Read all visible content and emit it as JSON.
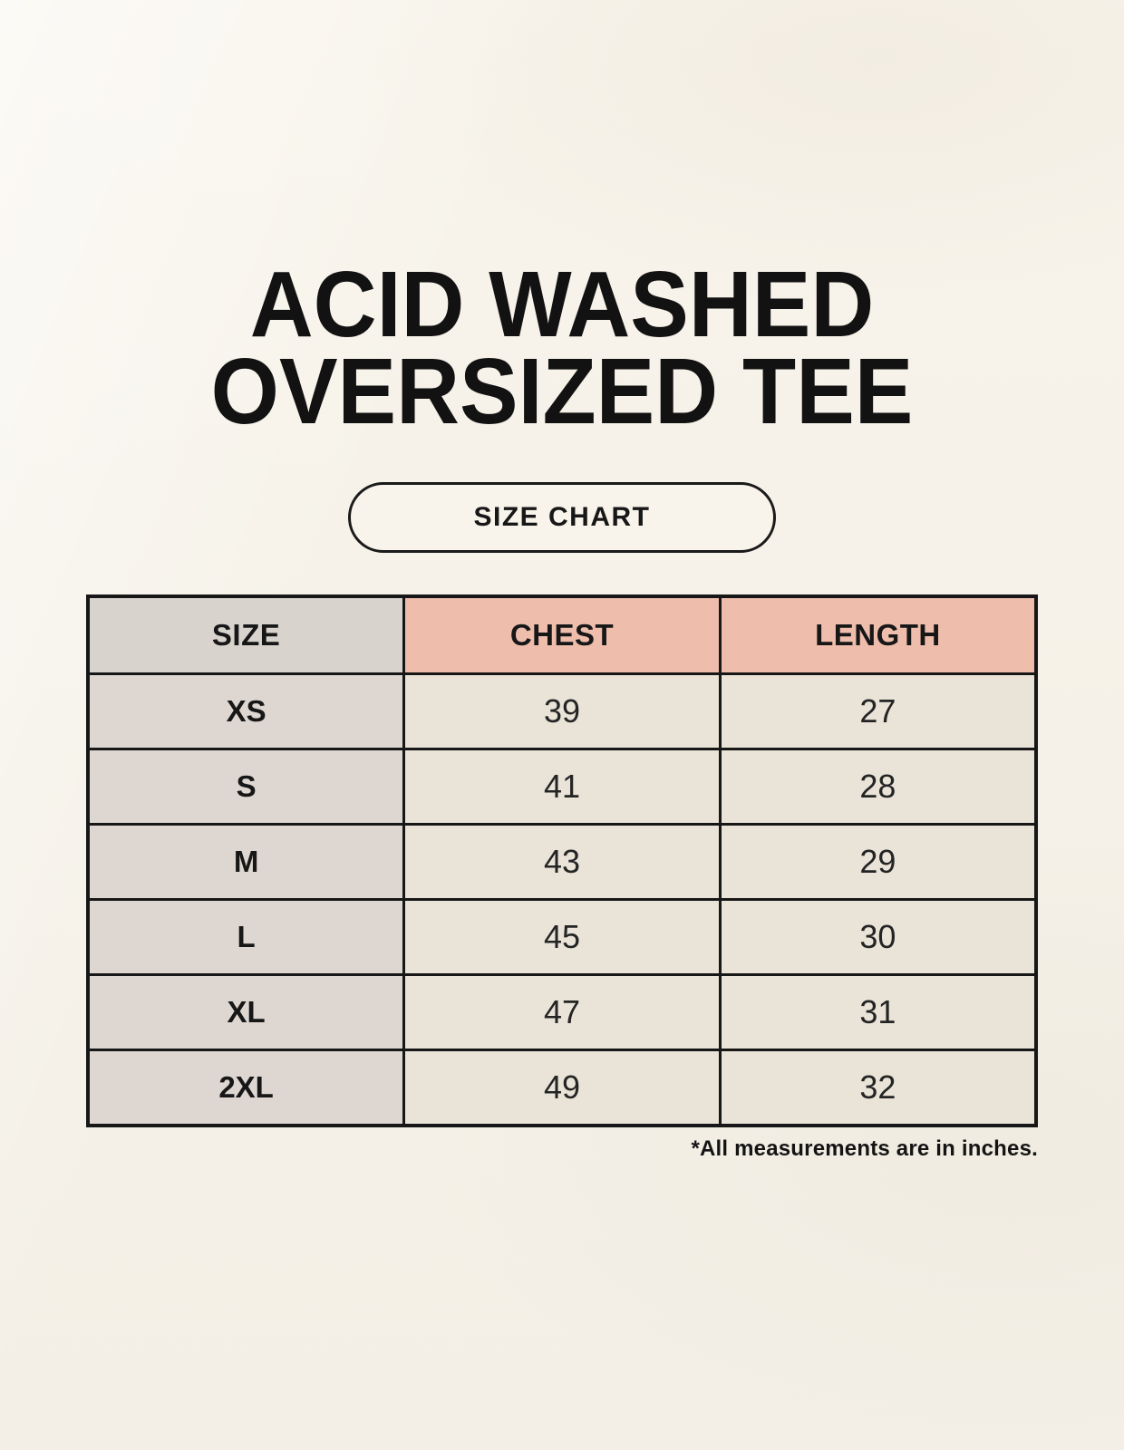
{
  "title": {
    "line1": "ACID WASHED",
    "line2": "OVERSIZED TEE"
  },
  "size_chart_button": {
    "label": "SIZE CHART"
  },
  "table": {
    "headers": {
      "size": "SIZE",
      "chest": "CHEST",
      "length": "LENGTH"
    },
    "rows": [
      {
        "size": "XS",
        "chest": "39",
        "length": "27"
      },
      {
        "size": "S",
        "chest": "41",
        "length": "28"
      },
      {
        "size": "M",
        "chest": "43",
        "length": "29"
      },
      {
        "size": "L",
        "chest": "45",
        "length": "30"
      },
      {
        "size": "XL",
        "chest": "47",
        "length": "31"
      },
      {
        "size": "2XL",
        "chest": "49",
        "length": "32"
      }
    ]
  },
  "footnote": "*All measurements are in inches.",
  "colors": {
    "background": "#f7f3ea",
    "header_size_bg": "#d9d3ce",
    "header_accent_bg": "#eebdac",
    "first_column_bg": "#ddd6d1",
    "cell_bg": "#e9e3d8",
    "border": "#171717",
    "text": "#171717"
  },
  "chart_data": {
    "type": "table",
    "title": "ACID WASHED OVERSIZED TEE",
    "subtitle": "SIZE CHART",
    "columns": [
      "SIZE",
      "CHEST",
      "LENGTH"
    ],
    "rows": [
      [
        "XS",
        39,
        27
      ],
      [
        "S",
        41,
        28
      ],
      [
        "M",
        43,
        29
      ],
      [
        "L",
        45,
        30
      ],
      [
        "XL",
        47,
        31
      ],
      [
        "2XL",
        49,
        32
      ]
    ],
    "units": "inches",
    "note": "*All measurements are in inches."
  }
}
